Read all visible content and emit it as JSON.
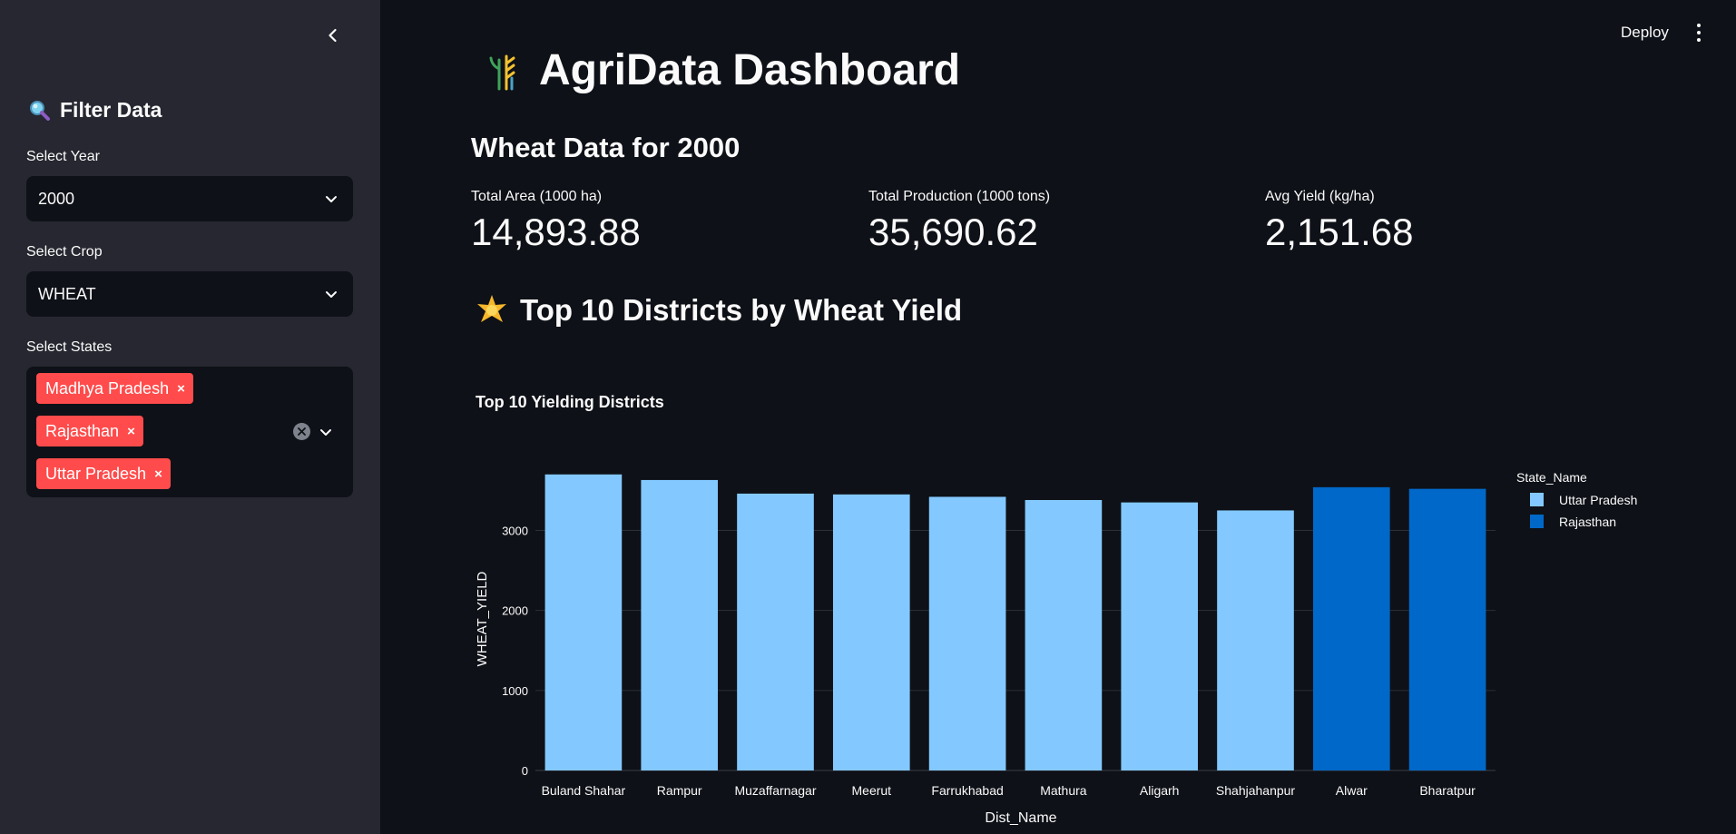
{
  "sidebar": {
    "header": "Filter Data",
    "year": {
      "label": "Select Year",
      "value": "2000"
    },
    "crop": {
      "label": "Select Crop",
      "value": "WHEAT"
    },
    "states": {
      "label": "Select States",
      "selected": [
        "Madhya Pradesh",
        "Rajasthan",
        "Uttar Pradesh"
      ],
      "remove_glyph": "×"
    }
  },
  "topbar": {
    "deploy_label": "Deploy"
  },
  "main": {
    "title": "AgriData Dashboard",
    "subheader": "Wheat Data for 2000",
    "metrics": [
      {
        "label": "Total Area (1000 ha)",
        "value": "14,893.88"
      },
      {
        "label": "Total Production (1000 tons)",
        "value": "35,690.62"
      },
      {
        "label": "Avg Yield (kg/ha)",
        "value": "2,151.68"
      }
    ],
    "section_title": "Top 10 Districts by Wheat Yield"
  },
  "icons": {
    "collapse": "chevron-left-icon",
    "filter": "magnifier-icon",
    "logo": "wheat-logo-icon",
    "section": "sparkle-star-icon",
    "menu": "kebab-menu-icon"
  },
  "chart_data": {
    "type": "bar",
    "title": "Top 10 Yielding Districts",
    "xlabel": "Dist_Name",
    "ylabel": "WHEAT_YIELD",
    "ylim": [
      0,
      3720
    ],
    "yticks": [
      0,
      1000,
      2000,
      3000
    ],
    "grid": true,
    "legend_title": "State_Name",
    "legend_position": "right",
    "categories": [
      "Buland Shahar",
      "Rampur",
      "Muzaffarnagar",
      "Meerut",
      "Farrukhabad",
      "Mathura",
      "Aligarh",
      "Shahjahanpur",
      "Alwar",
      "Bharatpur"
    ],
    "series": [
      {
        "name": "Uttar Pradesh",
        "color": "#83c9ff",
        "values": [
          3700,
          3630,
          3460,
          3450,
          3420,
          3380,
          3350,
          3250,
          null,
          null
        ]
      },
      {
        "name": "Rajasthan",
        "color": "#0068c9",
        "values": [
          null,
          null,
          null,
          null,
          null,
          null,
          null,
          null,
          3540,
          3520
        ]
      }
    ]
  }
}
